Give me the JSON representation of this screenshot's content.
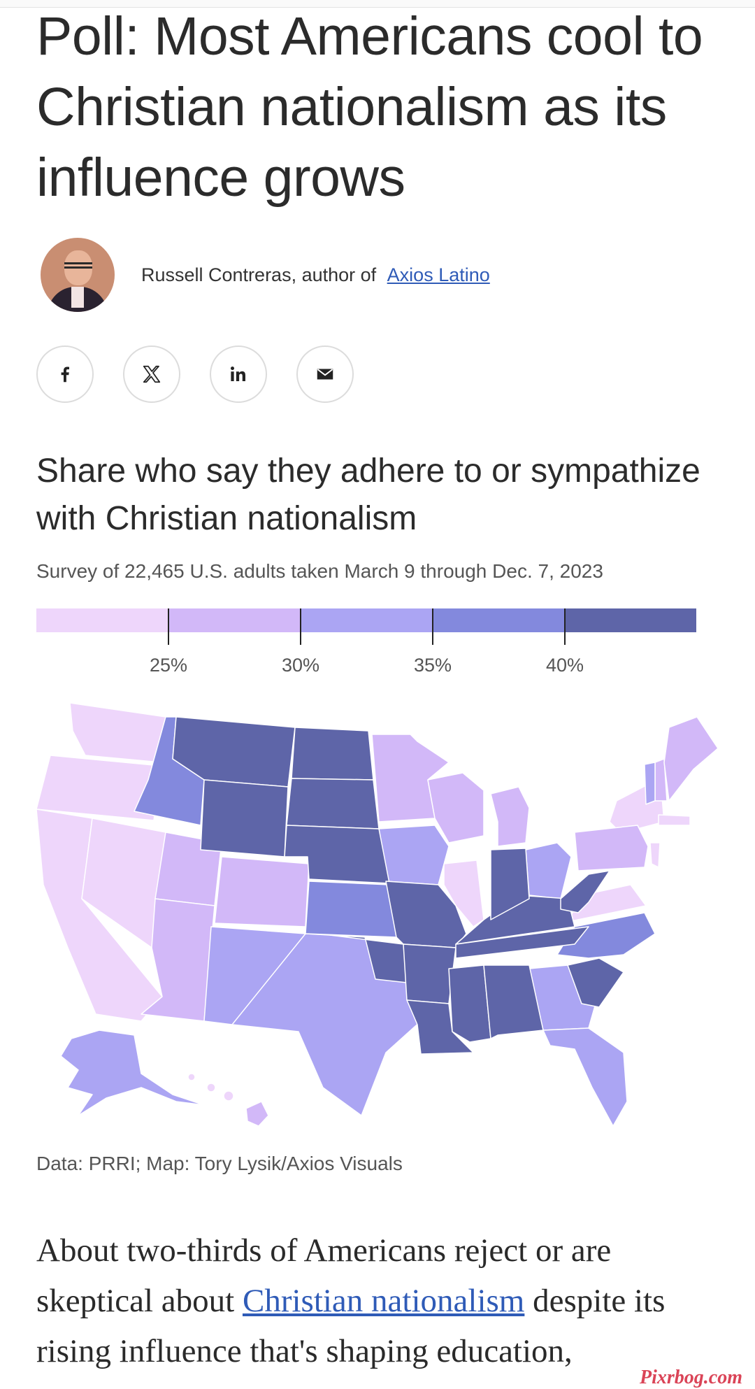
{
  "article": {
    "headline": "Poll: Most Americans cool to Christian nationalism as its influence grows",
    "byline_prefix": "Russell Contreras, author of",
    "byline_link": "Axios Latino"
  },
  "share": [
    {
      "name": "facebook",
      "glyph": "f"
    },
    {
      "name": "x",
      "glyph": "𝕏"
    },
    {
      "name": "linkedin",
      "glyph": "in"
    },
    {
      "name": "email",
      "glyph": "✉"
    }
  ],
  "map_chart": {
    "title": "Share who say they adhere to or sympathize with Christian nationalism",
    "subtitle": "Survey of 22,465 U.S. adults taken March 9 through Dec. 7, 2023",
    "legend_colors": [
      "#eed6fb",
      "#d2b8f8",
      "#aba5f3",
      "#8389dd",
      "#5e65a8"
    ],
    "legend_labels": [
      "25%",
      "30%",
      "35%",
      "40%"
    ],
    "source": "Data: PRRI; Map: Tory Lysik/Axios Visuals"
  },
  "body": {
    "text_before": "About two-thirds of Americans reject or are skeptical about",
    "link": "Christian nationalism",
    "text_after": "despite its rising influence that's shaping education,"
  },
  "watermark": "Pixrbog.com"
}
